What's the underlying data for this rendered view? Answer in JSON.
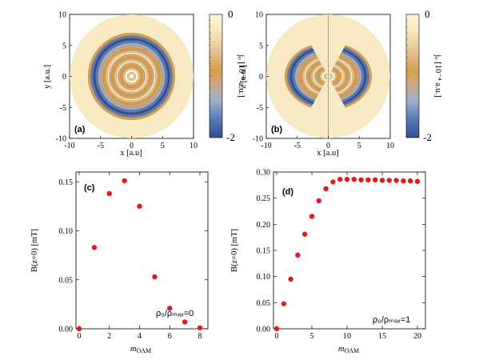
{
  "colors": {
    "colormap": [
      "#2f4f8f",
      "#5a79b8",
      "#9bb0cc",
      "#d8c8a8",
      "#d7a46a",
      "#d89e4f",
      "#e6c493",
      "#f7eac3",
      "#fdf6d8"
    ],
    "marker": "#e31a1c",
    "axis": "#000000"
  },
  "chart_data": [
    {
      "panel": "(a)",
      "type": "heatmap",
      "xlabel": "x [a.u]",
      "ylabel": "y [a.u.]",
      "x_ticks": [
        "-10",
        "-5",
        "0",
        "5",
        "10"
      ],
      "y_ticks": [
        "-10",
        "-5",
        "0",
        "5",
        "10"
      ],
      "xlim": [
        -10,
        10
      ],
      "ylim": [
        -10,
        10
      ],
      "disk_radius": 10,
      "plane": "xy",
      "colorbar": {
        "label": "jᵩ [10⁻⁴ a.u.]",
        "range": [
          -2,
          0
        ],
        "ticks": [
          "0",
          "-2"
        ]
      }
    },
    {
      "panel": "(b)",
      "type": "heatmap",
      "xlabel": "x [a.u]",
      "ylabel": "z [a.u.]",
      "x_ticks": [
        "-10",
        "-5",
        "0",
        "5",
        "10"
      ],
      "y_ticks": [
        "-10",
        "-5",
        "0",
        "5",
        "10"
      ],
      "xlim": [
        -10,
        10
      ],
      "ylim": [
        -10,
        10
      ],
      "disk_radius": 10,
      "plane": "xz",
      "colorbar": {
        "label": "jᵩ [10⁻⁴ a.u.]",
        "range": [
          -2,
          0
        ],
        "ticks": [
          "0",
          "-2"
        ]
      }
    },
    {
      "panel": "(c)",
      "type": "scatter",
      "xlabel": "m",
      "xlabel_sub": "OAM",
      "ylabel": "B(z=0) [mT]",
      "xlim": [
        0,
        8
      ],
      "ylim": [
        0,
        0.16
      ],
      "x_ticks": [
        0,
        2,
        4,
        6,
        8
      ],
      "y_ticks": [
        0,
        0.05,
        0.1,
        0.15
      ],
      "y_tick_labels": [
        "0.00",
        "0.05",
        "0.10",
        "0.15"
      ],
      "annotation": "ρ₀/ρₘₐₓ=0",
      "x": [
        0,
        1,
        2,
        3,
        4,
        5,
        6,
        7,
        8
      ],
      "y": [
        0.0,
        0.083,
        0.138,
        0.151,
        0.125,
        0.053,
        0.021,
        0.007,
        0.001
      ]
    },
    {
      "panel": "(d)",
      "type": "scatter",
      "xlabel": "m",
      "xlabel_sub": "OAM",
      "ylabel": "B(z=0) [mT]",
      "xlim": [
        0,
        20
      ],
      "ylim": [
        0,
        0.3
      ],
      "x_ticks": [
        0,
        5,
        10,
        15,
        20
      ],
      "y_ticks": [
        0,
        0.05,
        0.1,
        0.15,
        0.2,
        0.25,
        0.3
      ],
      "y_tick_labels": [
        "0.00",
        "0.05",
        "0.10",
        "0.15",
        "0.20",
        "0.25",
        "0.30"
      ],
      "annotation": "ρ₀/ρₘₐₓ=1",
      "x": [
        0,
        1,
        2,
        3,
        4,
        5,
        6,
        7,
        8,
        9,
        10,
        11,
        12,
        13,
        14,
        15,
        16,
        17,
        18,
        19,
        20
      ],
      "y": [
        0.0,
        0.048,
        0.095,
        0.141,
        0.181,
        0.215,
        0.245,
        0.268,
        0.281,
        0.286,
        0.286,
        0.286,
        0.285,
        0.285,
        0.285,
        0.284,
        0.284,
        0.284,
        0.283,
        0.283,
        0.282
      ]
    }
  ]
}
